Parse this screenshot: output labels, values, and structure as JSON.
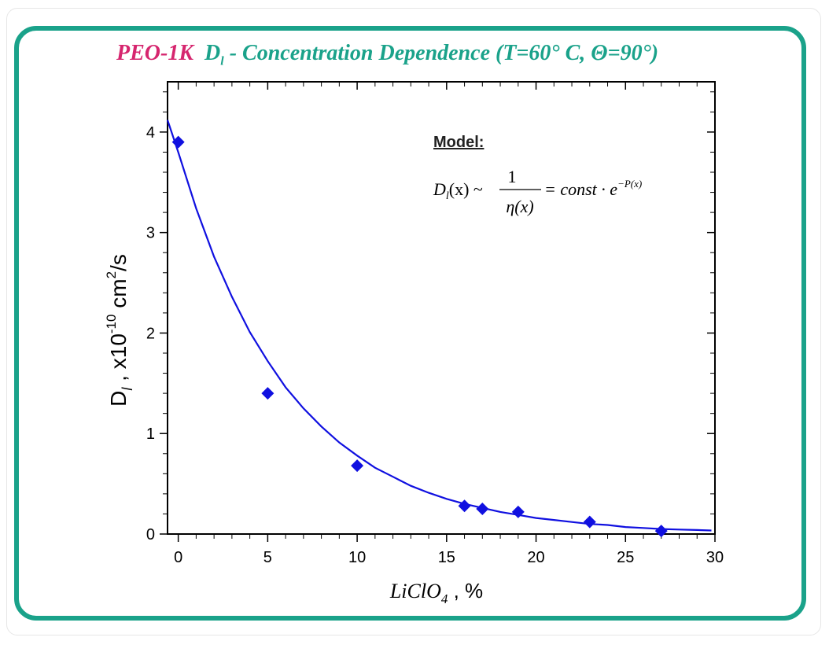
{
  "title": {
    "prefix": "PEO-1K",
    "symbol": "D",
    "symbol_sub": "l",
    "rest": " - Concentration Dependence (T=60° C, Θ=90°)"
  },
  "model_box": {
    "heading": "Model:",
    "formula_lhs": "D",
    "formula_lhs_sub": "l",
    "formula_lhs_arg": "(x) ~",
    "frac_num": "1",
    "frac_den": "η(x)",
    "formula_rhs": "= const · e",
    "formula_exp": "−P(x)"
  },
  "colors": {
    "frame": "#1aa28a",
    "title_prefix": "#d6256e",
    "series": "#1010e0"
  },
  "chart_data": {
    "type": "scatter",
    "xlabel_main": "LiClO",
    "xlabel_sub": "4",
    "xlabel_unit": " , %",
    "ylabel_main": "D",
    "ylabel_sub": "l",
    "ylabel_unit_pre": " , x10",
    "ylabel_exp": "-10",
    "ylabel_unit_post": " cm",
    "ylabel_exp2": "2",
    "ylabel_tail": "/s",
    "xlim": [
      -0.6,
      30
    ],
    "ylim": [
      0,
      4.5
    ],
    "x_ticks": [
      0,
      5,
      10,
      15,
      20,
      25,
      30
    ],
    "y_ticks": [
      0,
      1,
      2,
      3,
      4
    ],
    "series": [
      {
        "type": "scatter",
        "marker": "diamond",
        "x": [
          0,
          5,
          10,
          16,
          17,
          19,
          23,
          27
        ],
        "y": [
          3.9,
          1.4,
          0.68,
          0.28,
          0.25,
          0.22,
          0.12,
          0.03
        ]
      },
      {
        "type": "line",
        "x": [
          -0.6,
          0,
          1,
          2,
          3,
          4,
          5,
          6,
          7,
          8,
          9,
          10,
          11,
          12,
          13,
          14,
          15,
          16,
          17,
          18,
          19,
          20,
          21,
          22,
          23,
          24,
          25,
          26,
          27,
          28,
          29,
          29.8
        ],
        "y": [
          4.12,
          3.8,
          3.24,
          2.76,
          2.36,
          2.01,
          1.72,
          1.46,
          1.25,
          1.07,
          0.91,
          0.78,
          0.66,
          0.57,
          0.48,
          0.41,
          0.35,
          0.3,
          0.26,
          0.22,
          0.19,
          0.16,
          0.14,
          0.12,
          0.1,
          0.09,
          0.07,
          0.06,
          0.05,
          0.045,
          0.04,
          0.035
        ]
      }
    ]
  }
}
